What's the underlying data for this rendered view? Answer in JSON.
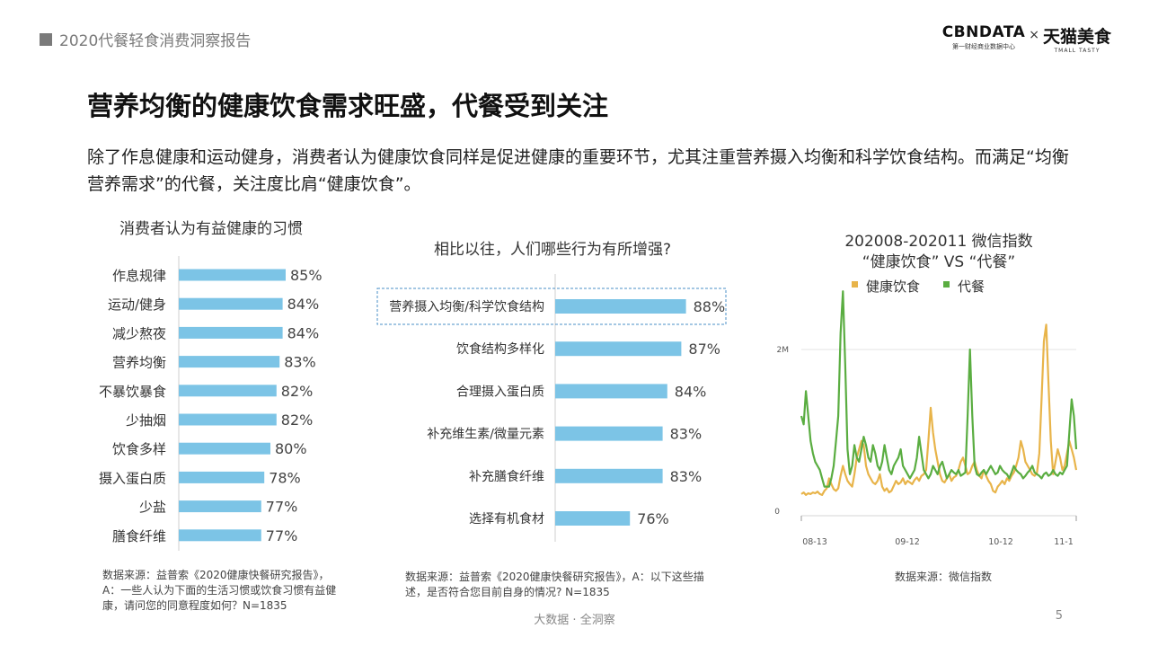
{
  "header": {
    "report_title": "2020代餐轻食消费洞察报告",
    "logo_cbndata": "CBNDATA",
    "logo_cbndata_sub": "第一财经商业数据中心",
    "logo_x": "×",
    "logo_tmall": "天猫美食",
    "logo_tmall_sub": "TMALL TASTY"
  },
  "page": {
    "title": "营养均衡的健康饮食需求旺盛，代餐受到关注",
    "description": "除了作息健康和运动健身，消费者认为健康饮食同样是促进健康的重要环节，尤其注重营养摄入均衡和科学饮食结构。而满足“均衡营养需求”的代餐，关注度比肩“健康饮食”。"
  },
  "chart_data": [
    {
      "type": "bar",
      "orientation": "horizontal",
      "title": "消费者认为有益健康的习惯",
      "categories": [
        "作息规律",
        "运动/健身",
        "减少熬夜",
        "营养均衡",
        "不暴饮暴食",
        "少抽烟",
        "饮食多样",
        "摄入蛋白质",
        "少盐",
        "膳食纤维"
      ],
      "values": [
        85,
        84,
        84,
        83,
        82,
        82,
        80,
        78,
        77,
        77
      ],
      "labels": [
        "85%",
        "84%",
        "84%",
        "83%",
        "82%",
        "82%",
        "80%",
        "78%",
        "77%",
        "77%"
      ],
      "color": "#7cc4e6",
      "source": "数据来源：益普索《2020健康快餐研究报告》，A：一些人认为下面的生活习惯或饮食习惯有益健康，请问您的同意程度如何？N=1835"
    },
    {
      "type": "bar",
      "orientation": "horizontal",
      "title": "相比以往，人们哪些行为有所增强?",
      "categories": [
        "营养摄入均衡/科学饮食结构",
        "饮食结构多样化",
        "合理摄入蛋白质",
        "补充维生素/微量元素",
        "补充膳食纤维",
        "选择有机食材"
      ],
      "values": [
        88,
        87,
        84,
        83,
        83,
        76
      ],
      "labels": [
        "88%",
        "87%",
        "84%",
        "83%",
        "83%",
        "76%"
      ],
      "highlight": "营养摄入均衡/科学饮食结构",
      "color": "#7cc4e6",
      "source": "数据来源：益普索《2020健康快餐研究报告》，A：以下这些描述，是否符合您目前自身的情况? N=1835"
    },
    {
      "type": "line",
      "title": "202008-202011 微信指数",
      "subtitle": "“健康饮食”  VS “代餐”",
      "x_ticks": [
        "08-13",
        "09-12",
        "10-12",
        "11-1"
      ],
      "y_ticks": [
        "0",
        "2M"
      ],
      "ylim": [
        0,
        3000000
      ],
      "x_count": 120,
      "series": [
        {
          "name": "健康饮食",
          "color": "#e8b44a",
          "values": [
            260000,
            280000,
            250000,
            270000,
            260000,
            280000,
            270000,
            290000,
            260000,
            250000,
            300000,
            330000,
            450000,
            380000,
            320000,
            300000,
            330000,
            480000,
            600000,
            500000,
            420000,
            380000,
            350000,
            500000,
            700000,
            800000,
            900000,
            850000,
            600000,
            500000,
            450000,
            400000,
            380000,
            420000,
            500000,
            350000,
            300000,
            330000,
            280000,
            300000,
            360000,
            420000,
            380000,
            400000,
            450000,
            380000,
            420000,
            400000,
            380000,
            430000,
            460000,
            420000,
            480000,
            500000,
            550000,
            900000,
            1300000,
            1000000,
            800000,
            650000,
            500000,
            420000,
            400000,
            450000,
            500000,
            420000,
            460000,
            480000,
            550000,
            650000,
            700000,
            600000,
            500000,
            520000,
            600000,
            650000,
            550000,
            480000,
            450000,
            550000,
            480000,
            420000,
            380000,
            300000,
            280000,
            350000,
            380000,
            420000,
            380000,
            450000,
            420000,
            480000,
            520000,
            600000,
            700000,
            900000,
            800000,
            650000,
            600000,
            550000,
            500000,
            480000,
            520000,
            750000,
            1400000,
            2100000,
            2300000,
            1600000,
            900000,
            500000,
            650000,
            800000,
            700000,
            550000,
            600000,
            750000,
            900000,
            800000,
            700000,
            550000
          ]
        },
        {
          "name": "代餐",
          "color": "#5aad41",
          "values": [
            1200000,
            1100000,
            1500000,
            1200000,
            900000,
            750000,
            650000,
            600000,
            550000,
            450000,
            350000,
            350000,
            350000,
            450000,
            600000,
            900000,
            1200000,
            2200000,
            2700000,
            1800000,
            800000,
            500000,
            600000,
            850000,
            700000,
            650000,
            800000,
            950000,
            850000,
            700000,
            650000,
            850000,
            750000,
            600000,
            550000,
            650000,
            850000,
            700000,
            550000,
            500000,
            600000,
            650000,
            700000,
            800000,
            600000,
            550000,
            500000,
            450000,
            500000,
            550000,
            700000,
            950000,
            750000,
            550000,
            500000,
            450000,
            500000,
            600000,
            550000,
            500000,
            600000,
            650000,
            550000,
            450000,
            500000,
            550000,
            520000,
            500000,
            550000,
            480000,
            500000,
            520000,
            1200000,
            2000000,
            1200000,
            600000,
            500000,
            480000,
            520000,
            550000,
            500000,
            550000,
            600000,
            550000,
            500000,
            520000,
            600000,
            550000,
            520000,
            500000,
            450000,
            520000,
            600000,
            550000,
            520000,
            500000,
            450000,
            480000,
            520000,
            550000,
            600000,
            520000,
            500000,
            480000,
            450000,
            500000,
            520000,
            480000,
            500000,
            550000,
            500000,
            480000,
            520000,
            500000,
            550000,
            600000,
            1000000,
            1400000,
            1200000,
            800000
          ]
        }
      ],
      "source": "数据来源：微信指数"
    }
  ],
  "footer": {
    "center_text": "大数据 · 全洞察",
    "page_number": "5"
  }
}
